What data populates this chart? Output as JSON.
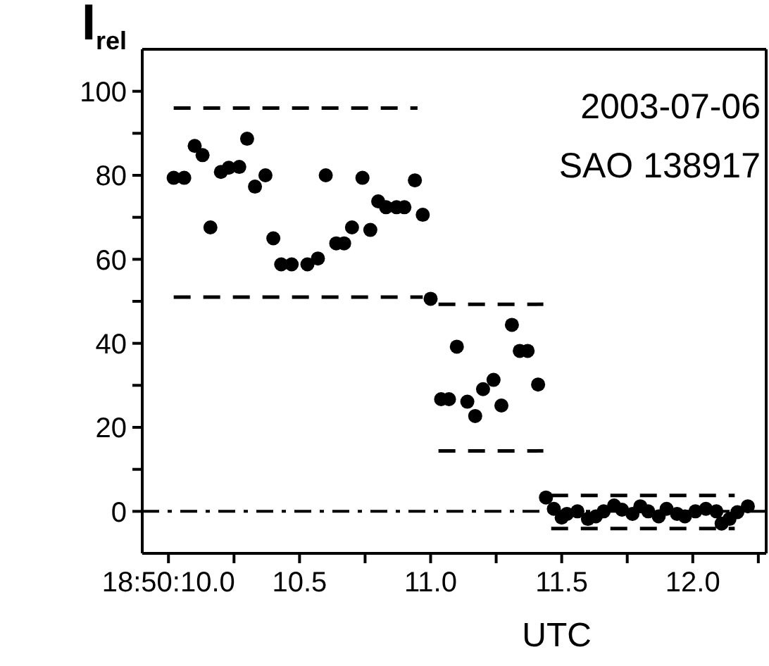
{
  "chart_data": {
    "type": "scatter",
    "ylabel": "I$_{rel}$",
    "xlabel": "UTC",
    "annotations": [
      "2003-07-06",
      "SAO 138917"
    ],
    "xlim": [
      9.9,
      12.28
    ],
    "ylim": [
      -10,
      110
    ],
    "xticks": [
      {
        "value": 10.0,
        "label": "18:50:10.0"
      },
      {
        "value": 10.25,
        "label": null
      },
      {
        "value": 10.5,
        "label": "10.5"
      },
      {
        "value": 10.75,
        "label": null
      },
      {
        "value": 11.0,
        "label": "11.0"
      },
      {
        "value": 11.25,
        "label": null
      },
      {
        "value": 11.5,
        "label": "11.5"
      },
      {
        "value": 11.75,
        "label": null
      },
      {
        "value": 12.0,
        "label": "12.0"
      },
      {
        "value": 12.25,
        "label": null
      }
    ],
    "yticks": [
      0,
      {
        "value": 10,
        "label": null
      },
      20,
      {
        "value": 30,
        "label": null
      },
      40,
      {
        "value": 50,
        "label": null
      },
      60,
      {
        "value": 70,
        "label": null
      },
      80,
      {
        "value": 90,
        "label": null
      },
      100
    ],
    "marker": "circle",
    "ref_lines": [
      {
        "axis": "y",
        "value": 0,
        "label": null,
        "color": "#000000",
        "line_style": "dashdot"
      }
    ],
    "series": [
      {
        "color": "#000000",
        "x": [
          10.02,
          10.06,
          10.1,
          10.13,
          10.16,
          10.2,
          10.23,
          10.27,
          10.3,
          10.33,
          10.37,
          10.4,
          10.43,
          10.47,
          10.53,
          10.57,
          10.6,
          10.64,
          10.67,
          10.7,
          10.74,
          10.77,
          10.8,
          10.83,
          10.87,
          10.9,
          10.94,
          10.97,
          11.0,
          11.04,
          11.07,
          11.1,
          11.14,
          11.17,
          11.2,
          11.24,
          11.27,
          11.31,
          11.34,
          11.37,
          11.41,
          11.44,
          11.47,
          11.5,
          11.52,
          11.56,
          11.6,
          11.63,
          11.66,
          11.7,
          11.73,
          11.77,
          11.8,
          11.83,
          11.87,
          11.9,
          11.94,
          11.97,
          12.01,
          12.05,
          12.09,
          12.11,
          12.14,
          12.17,
          12.21
        ],
        "values": [
          79.4,
          79.4,
          87,
          84.8,
          67.6,
          80.8,
          81.8,
          82,
          88.7,
          77.3,
          80,
          65,
          58.8,
          58.8,
          58.8,
          60.2,
          80,
          63.8,
          63.8,
          67.6,
          79.4,
          67,
          73.8,
          72.4,
          72.4,
          72.4,
          78.8,
          70.6,
          50.6,
          26.7,
          26.7,
          39.2,
          26.1,
          22.7,
          29.1,
          31.3,
          25.2,
          44.4,
          38.2,
          38.2,
          30.2,
          3.3,
          0.6,
          -1.5,
          -0.6,
          0,
          -1.8,
          -1.2,
          0,
          1.4,
          0.4,
          -0.6,
          1.2,
          0,
          -1.2,
          0.6,
          -0.6,
          -1.2,
          0,
          0.6,
          0,
          -2.9,
          -1.8,
          -0.2,
          1.2
        ]
      },
      {
        "type": "line",
        "color": "#000000",
        "line_style": "dashed",
        "marker": "none",
        "x": [
          10.02,
          10.95
        ],
        "values": [
          96,
          96
        ]
      },
      {
        "type": "line",
        "color": "#000000",
        "line_style": "dashed",
        "marker": "none",
        "x": [
          10.02,
          10.97
        ],
        "values": [
          51,
          51
        ]
      },
      {
        "type": "line",
        "color": "#000000",
        "line_style": "dashed",
        "marker": "none",
        "x": [
          11.03,
          11.43
        ],
        "values": [
          49.3,
          49.3
        ]
      },
      {
        "type": "line",
        "color": "#000000",
        "line_style": "dashed",
        "marker": "none",
        "x": [
          11.03,
          11.43
        ],
        "values": [
          14.4,
          14.4
        ]
      },
      {
        "type": "line",
        "color": "#000000",
        "line_style": "dashed",
        "marker": "none",
        "x": [
          11.46,
          12.16
        ],
        "values": [
          3.8,
          3.8
        ]
      },
      {
        "type": "line",
        "color": "#000000",
        "line_style": "dashed",
        "marker": "none",
        "x": [
          11.46,
          12.16
        ],
        "values": [
          -4.1,
          -4.1
        ]
      }
    ]
  }
}
